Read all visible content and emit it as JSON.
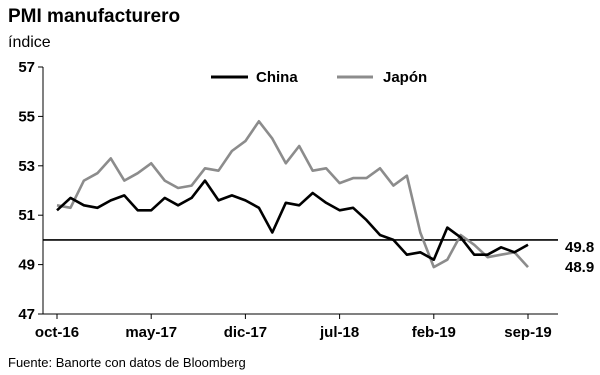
{
  "chart_data": {
    "type": "line",
    "title": "PMI manufacturero",
    "ylabel": "índice",
    "source": "Fuente: Banorte con datos de Bloomberg",
    "ylim": [
      47,
      57
    ],
    "yticks": [
      47,
      49,
      51,
      53,
      55,
      57
    ],
    "x_tick_labels": [
      "oct-16",
      "may-17",
      "dic-17",
      "jul-18",
      "feb-19",
      "sep-19"
    ],
    "x_tick_positions": [
      0,
      7,
      14,
      21,
      28,
      35
    ],
    "reference_line": 50,
    "legend_position": "top-center",
    "x": [
      "oct-16",
      "nov-16",
      "dic-16",
      "ene-17",
      "feb-17",
      "mar-17",
      "abr-17",
      "may-17",
      "jun-17",
      "jul-17",
      "ago-17",
      "sep-17",
      "oct-17",
      "nov-17",
      "dic-17",
      "ene-18",
      "feb-18",
      "mar-18",
      "abr-18",
      "may-18",
      "jun-18",
      "jul-18",
      "ago-18",
      "sep-18",
      "oct-18",
      "nov-18",
      "dic-18",
      "ene-19",
      "feb-19",
      "mar-19",
      "abr-19",
      "may-19",
      "jun-19",
      "jul-19",
      "ago-19",
      "sep-19"
    ],
    "series": [
      {
        "name": "China",
        "color": "#000000",
        "values": [
          51.2,
          51.7,
          51.4,
          51.3,
          51.6,
          51.8,
          51.2,
          51.2,
          51.7,
          51.4,
          51.7,
          52.4,
          51.6,
          51.8,
          51.6,
          51.3,
          50.3,
          51.5,
          51.4,
          51.9,
          51.5,
          51.2,
          51.3,
          50.8,
          50.2,
          50.0,
          49.4,
          49.5,
          49.2,
          50.5,
          50.1,
          49.4,
          49.4,
          49.7,
          49.5,
          49.8
        ],
        "end_label": "49.8"
      },
      {
        "name": "Japón",
        "color": "#8c8c8c",
        "values": [
          51.4,
          51.3,
          52.4,
          52.7,
          53.3,
          52.4,
          52.7,
          53.1,
          52.4,
          52.1,
          52.2,
          52.9,
          52.8,
          53.6,
          54.0,
          54.8,
          54.1,
          53.1,
          53.8,
          52.8,
          52.9,
          52.3,
          52.5,
          52.5,
          52.9,
          52.2,
          52.6,
          50.3,
          48.9,
          49.2,
          50.2,
          49.8,
          49.3,
          49.4,
          49.5,
          48.9
        ],
        "end_label": "48.9"
      }
    ]
  }
}
